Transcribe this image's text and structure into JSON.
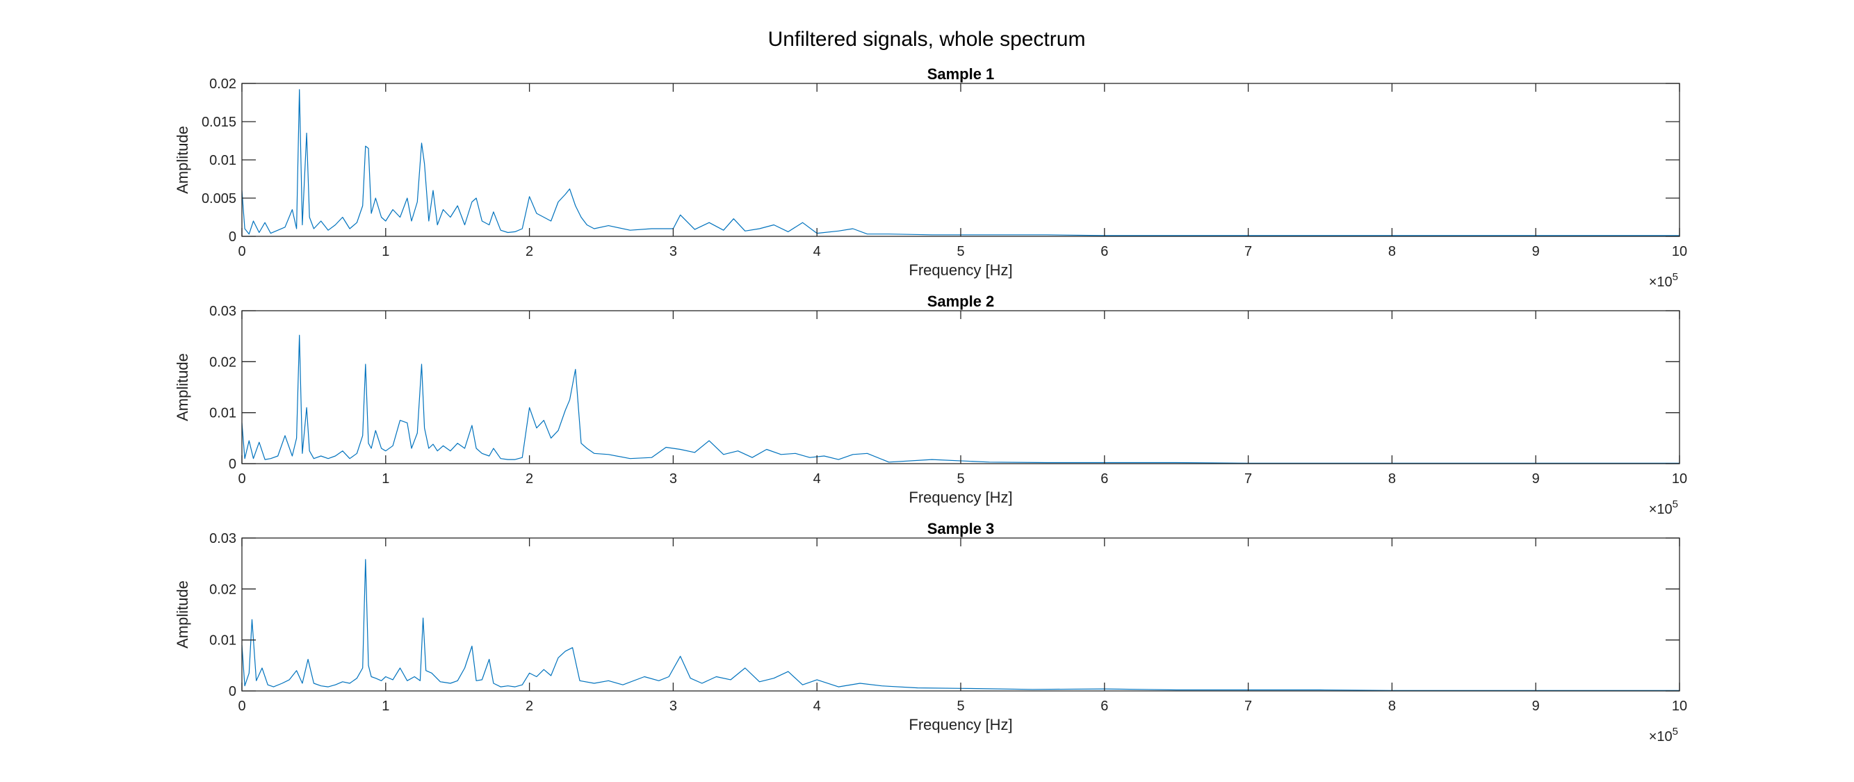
{
  "figure": {
    "title": "Unfiltered signals, whole spectrum"
  },
  "colors": {
    "line": "#0072BD",
    "axes": "#262626",
    "background": "#ffffff"
  },
  "chart_data": [
    {
      "type": "line",
      "title": "Sample 1",
      "xlabel": "Frequency [Hz]",
      "ylabel": "Amplitude",
      "x_exponent_label": "×10",
      "x_exponent": "5",
      "xlim": [
        0,
        10
      ],
      "ylim": [
        0,
        0.02
      ],
      "xticks": [
        0,
        1,
        2,
        3,
        4,
        5,
        6,
        7,
        8,
        9,
        10
      ],
      "yticks": [
        0,
        0.005,
        0.01,
        0.015,
        0.02
      ],
      "ytick_labels": [
        "0",
        "0.005",
        "0.01",
        "0.015",
        "0.02"
      ],
      "grid": false,
      "series": [
        {
          "x": [
            0,
            0.02,
            0.05,
            0.08,
            0.12,
            0.16,
            0.2,
            0.25,
            0.3,
            0.35,
            0.38,
            0.4,
            0.42,
            0.45,
            0.47,
            0.5,
            0.55,
            0.6,
            0.65,
            0.7,
            0.75,
            0.8,
            0.84,
            0.86,
            0.88,
            0.9,
            0.93,
            0.97,
            1.0,
            1.05,
            1.1,
            1.15,
            1.18,
            1.22,
            1.25,
            1.27,
            1.3,
            1.33,
            1.36,
            1.4,
            1.45,
            1.5,
            1.55,
            1.6,
            1.63,
            1.67,
            1.72,
            1.75,
            1.8,
            1.85,
            1.9,
            1.95,
            2.0,
            2.05,
            2.1,
            2.15,
            2.2,
            2.25,
            2.28,
            2.32,
            2.36,
            2.4,
            2.45,
            2.55,
            2.7,
            2.85,
            3.0,
            3.05,
            3.15,
            3.25,
            3.35,
            3.42,
            3.5,
            3.6,
            3.7,
            3.8,
            3.9,
            4.0,
            4.15,
            4.25,
            4.35,
            4.5,
            4.8,
            5.2,
            5.6,
            6.0,
            6.5,
            7.0,
            7.5,
            8.0,
            8.5,
            9.0,
            9.5,
            10.0
          ],
          "y": [
            0.006,
            0.001,
            0.0003,
            0.002,
            0.0005,
            0.0018,
            0.0004,
            0.0008,
            0.0012,
            0.0035,
            0.001,
            0.0192,
            0.0015,
            0.0135,
            0.0025,
            0.001,
            0.002,
            0.0008,
            0.0015,
            0.0025,
            0.001,
            0.0018,
            0.004,
            0.0118,
            0.0115,
            0.003,
            0.005,
            0.0025,
            0.002,
            0.0035,
            0.0025,
            0.005,
            0.002,
            0.0045,
            0.0122,
            0.0095,
            0.002,
            0.006,
            0.0015,
            0.0035,
            0.0025,
            0.004,
            0.0015,
            0.0045,
            0.005,
            0.002,
            0.0015,
            0.0032,
            0.0008,
            0.0005,
            0.0006,
            0.001,
            0.0052,
            0.003,
            0.0025,
            0.002,
            0.0045,
            0.0055,
            0.0062,
            0.004,
            0.0025,
            0.0015,
            0.001,
            0.0014,
            0.0008,
            0.001,
            0.001,
            0.0028,
            0.0009,
            0.0018,
            0.0008,
            0.0023,
            0.0007,
            0.001,
            0.0015,
            0.0006,
            0.0018,
            0.0004,
            0.0007,
            0.001,
            0.0003,
            0.0003,
            0.0002,
            0.0002,
            0.0002,
            0.0001,
            0.0001,
            0.0001,
            0.0001,
            0.0001,
            0.0001,
            0.0001,
            0.0001,
            0.0001
          ]
        }
      ]
    },
    {
      "type": "line",
      "title": "Sample 2",
      "xlabel": "Frequency [Hz]",
      "ylabel": "Amplitude",
      "x_exponent_label": "×10",
      "x_exponent": "5",
      "xlim": [
        0,
        10
      ],
      "ylim": [
        0,
        0.03
      ],
      "xticks": [
        0,
        1,
        2,
        3,
        4,
        5,
        6,
        7,
        8,
        9,
        10
      ],
      "yticks": [
        0,
        0.01,
        0.02,
        0.03
      ],
      "ytick_labels": [
        "0",
        "0.01",
        "0.02",
        "0.03"
      ],
      "grid": false,
      "series": [
        {
          "x": [
            0,
            0.02,
            0.05,
            0.08,
            0.12,
            0.16,
            0.2,
            0.25,
            0.3,
            0.35,
            0.38,
            0.4,
            0.42,
            0.45,
            0.47,
            0.5,
            0.55,
            0.6,
            0.65,
            0.7,
            0.75,
            0.8,
            0.84,
            0.86,
            0.88,
            0.9,
            0.93,
            0.97,
            1.0,
            1.05,
            1.1,
            1.15,
            1.18,
            1.22,
            1.25,
            1.27,
            1.3,
            1.33,
            1.36,
            1.4,
            1.45,
            1.5,
            1.55,
            1.6,
            1.63,
            1.67,
            1.72,
            1.75,
            1.8,
            1.85,
            1.9,
            1.95,
            2.0,
            2.05,
            2.1,
            2.15,
            2.2,
            2.25,
            2.28,
            2.32,
            2.36,
            2.4,
            2.45,
            2.55,
            2.7,
            2.85,
            2.95,
            3.05,
            3.15,
            3.25,
            3.35,
            3.45,
            3.55,
            3.65,
            3.75,
            3.85,
            3.95,
            4.05,
            4.15,
            4.25,
            4.35,
            4.5,
            4.8,
            5.2,
            5.6,
            6.0,
            6.5,
            7.0,
            7.5,
            8.0,
            8.5,
            9.0,
            9.5,
            10.0
          ],
          "y": [
            0.008,
            0.001,
            0.0045,
            0.001,
            0.0042,
            0.0008,
            0.001,
            0.0015,
            0.0055,
            0.0015,
            0.005,
            0.0252,
            0.002,
            0.011,
            0.0025,
            0.001,
            0.0015,
            0.001,
            0.0015,
            0.0025,
            0.001,
            0.002,
            0.0055,
            0.0195,
            0.004,
            0.003,
            0.0065,
            0.003,
            0.0025,
            0.0035,
            0.0085,
            0.008,
            0.003,
            0.006,
            0.0195,
            0.007,
            0.003,
            0.0038,
            0.0025,
            0.0035,
            0.0025,
            0.004,
            0.003,
            0.0075,
            0.003,
            0.002,
            0.0015,
            0.003,
            0.001,
            0.0008,
            0.0008,
            0.0012,
            0.011,
            0.007,
            0.0085,
            0.005,
            0.0065,
            0.0105,
            0.0125,
            0.0185,
            0.004,
            0.003,
            0.002,
            0.0018,
            0.001,
            0.0012,
            0.0032,
            0.0028,
            0.0022,
            0.0045,
            0.0018,
            0.0025,
            0.0012,
            0.0028,
            0.0018,
            0.002,
            0.0012,
            0.0015,
            0.0008,
            0.0018,
            0.002,
            0.0003,
            0.0008,
            0.0003,
            0.0002,
            0.0002,
            0.0002,
            0.0001,
            0.0001,
            0.0001,
            0.0001,
            0.0001,
            0.0001,
            0.0001
          ]
        }
      ]
    },
    {
      "type": "line",
      "title": "Sample 3",
      "xlabel": "Frequency [Hz]",
      "ylabel": "Amplitude",
      "x_exponent_label": "×10",
      "x_exponent": "5",
      "xlim": [
        0,
        10
      ],
      "ylim": [
        0,
        0.03
      ],
      "xticks": [
        0,
        1,
        2,
        3,
        4,
        5,
        6,
        7,
        8,
        9,
        10
      ],
      "yticks": [
        0,
        0.01,
        0.02,
        0.03
      ],
      "ytick_labels": [
        "0",
        "0.01",
        "0.02",
        "0.03"
      ],
      "grid": false,
      "series": [
        {
          "x": [
            0,
            0.02,
            0.05,
            0.07,
            0.1,
            0.14,
            0.18,
            0.22,
            0.28,
            0.33,
            0.38,
            0.42,
            0.46,
            0.5,
            0.55,
            0.6,
            0.65,
            0.7,
            0.75,
            0.8,
            0.84,
            0.86,
            0.88,
            0.9,
            0.93,
            0.97,
            1.0,
            1.05,
            1.1,
            1.15,
            1.2,
            1.24,
            1.26,
            1.28,
            1.32,
            1.38,
            1.45,
            1.5,
            1.55,
            1.6,
            1.63,
            1.67,
            1.72,
            1.75,
            1.8,
            1.85,
            1.9,
            1.95,
            2.0,
            2.05,
            2.1,
            2.15,
            2.2,
            2.25,
            2.3,
            2.35,
            2.45,
            2.55,
            2.65,
            2.8,
            2.9,
            2.97,
            3.05,
            3.12,
            3.2,
            3.3,
            3.4,
            3.5,
            3.6,
            3.7,
            3.8,
            3.9,
            4.0,
            4.15,
            4.3,
            4.45,
            4.7,
            5.0,
            5.5,
            6.0,
            6.5,
            7.0,
            7.5,
            8.0,
            8.5,
            9.0,
            9.5,
            10.0
          ],
          "y": [
            0.009,
            0.001,
            0.0035,
            0.014,
            0.002,
            0.0045,
            0.0012,
            0.0008,
            0.0015,
            0.0022,
            0.004,
            0.0015,
            0.0062,
            0.0015,
            0.001,
            0.0008,
            0.0012,
            0.0018,
            0.0015,
            0.0025,
            0.0045,
            0.0258,
            0.005,
            0.0028,
            0.0025,
            0.002,
            0.0028,
            0.0022,
            0.0045,
            0.002,
            0.0028,
            0.002,
            0.0143,
            0.004,
            0.0035,
            0.0018,
            0.0015,
            0.002,
            0.0045,
            0.0088,
            0.002,
            0.0022,
            0.0062,
            0.0015,
            0.0008,
            0.001,
            0.0008,
            0.0012,
            0.0035,
            0.0028,
            0.0042,
            0.003,
            0.0065,
            0.0078,
            0.0085,
            0.002,
            0.0015,
            0.002,
            0.0012,
            0.0028,
            0.002,
            0.0028,
            0.0068,
            0.0025,
            0.0015,
            0.0028,
            0.0022,
            0.0045,
            0.0018,
            0.0025,
            0.0038,
            0.0012,
            0.0022,
            0.0008,
            0.0015,
            0.001,
            0.0006,
            0.0005,
            0.0003,
            0.0004,
            0.0002,
            0.0002,
            0.0002,
            0.0001,
            0.0001,
            0.0001,
            0.0001,
            0.0001
          ]
        }
      ]
    }
  ]
}
